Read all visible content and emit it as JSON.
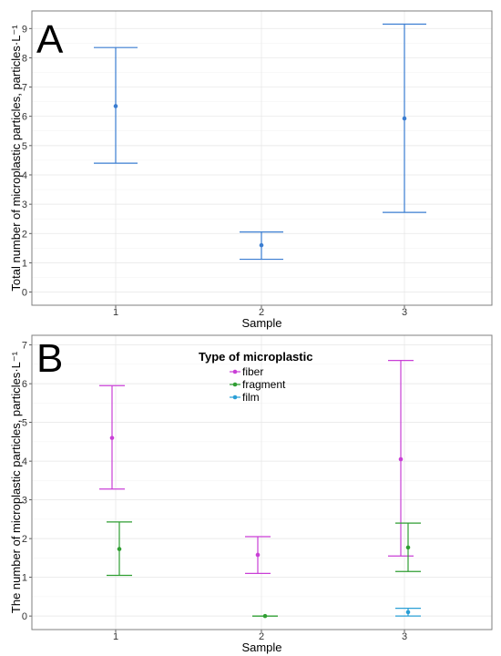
{
  "chart_data": [
    {
      "type": "errorbar",
      "panel_label": "A",
      "xlabel": "Sample",
      "ylabel": "Total number of microplastic particles, particles·L⁻¹",
      "categories": [
        "1",
        "2",
        "3"
      ],
      "y_ticks": [
        "0",
        "1",
        "2",
        "3",
        "4",
        "5",
        "6",
        "7",
        "8",
        "9"
      ],
      "ylim": [
        -0.45,
        9.6
      ],
      "grid": true,
      "series": [
        {
          "color": "#3a7dd1",
          "points": [
            {
              "x": "1",
              "mean": 6.35,
              "lower": 4.4,
              "upper": 8.35
            },
            {
              "x": "2",
              "mean": 1.6,
              "lower": 1.12,
              "upper": 2.05
            },
            {
              "x": "3",
              "mean": 5.93,
              "lower": 2.72,
              "upper": 9.15
            }
          ]
        }
      ]
    },
    {
      "type": "errorbar",
      "panel_label": "B",
      "xlabel": "Sample",
      "ylabel": "The number of microplastic particles, particles·L⁻¹",
      "categories": [
        "1",
        "2",
        "3"
      ],
      "y_ticks": [
        "0",
        "1",
        "2",
        "3",
        "4",
        "5",
        "6",
        "7"
      ],
      "ylim": [
        -0.35,
        7.25
      ],
      "grid": true,
      "legend_title": "Type of microplastic",
      "legend_position": "top-center",
      "series": [
        {
          "name": "fiber",
          "color": "#c93fd6",
          "points": [
            {
              "x": "1",
              "mean": 4.6,
              "lower": 3.28,
              "upper": 5.95
            },
            {
              "x": "2",
              "mean": 1.58,
              "lower": 1.1,
              "upper": 2.05
            },
            {
              "x": "3",
              "mean": 4.05,
              "lower": 1.55,
              "upper": 6.6
            }
          ]
        },
        {
          "name": "fragment",
          "color": "#2f9e32",
          "points": [
            {
              "x": "1",
              "mean": 1.73,
              "lower": 1.05,
              "upper": 2.43
            },
            {
              "x": "2",
              "mean": 0.0,
              "lower": 0.0,
              "upper": 0.0
            },
            {
              "x": "3",
              "mean": 1.77,
              "lower": 1.15,
              "upper": 2.4
            }
          ]
        },
        {
          "name": "film",
          "color": "#2a9fd6",
          "points": [
            {
              "x": "3",
              "mean": 0.1,
              "lower": 0.0,
              "upper": 0.2
            }
          ]
        }
      ]
    }
  ]
}
